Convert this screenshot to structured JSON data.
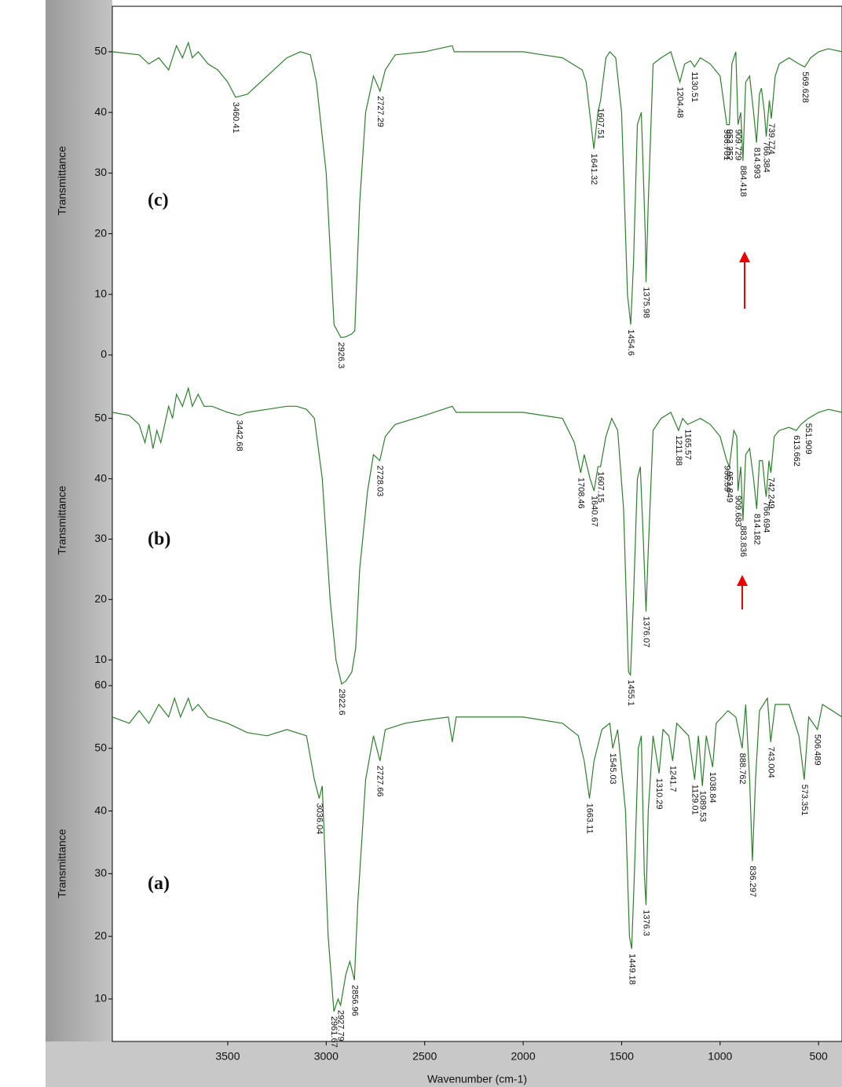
{
  "chart_data": [
    {
      "type": "line",
      "label": "(c)",
      "y_label": "Transmittance",
      "color": "#2f7f2f",
      "xlim": [
        4086,
        381
      ],
      "ylim": [
        0,
        57.5
      ],
      "yticks": [
        0,
        10,
        20,
        30,
        40,
        50
      ],
      "x": [
        4086,
        3950,
        3900,
        3850,
        3800,
        3760,
        3730,
        3700,
        3680,
        3650,
        3600,
        3550,
        3500,
        3460,
        3400,
        3300,
        3200,
        3130,
        3080,
        3050,
        3000,
        2960,
        2926,
        2900,
        2870,
        2855,
        2830,
        2800,
        2760,
        2727,
        2700,
        2650,
        2500,
        2360,
        2350,
        2200,
        2000,
        1900,
        1800,
        1700,
        1680,
        1641,
        1620,
        1607,
        1580,
        1560,
        1530,
        1500,
        1470,
        1454,
        1440,
        1420,
        1400,
        1380,
        1376,
        1365,
        1340,
        1300,
        1250,
        1204,
        1180,
        1150,
        1130,
        1100,
        1050,
        1000,
        966,
        953,
        940,
        920,
        909,
        895,
        884,
        870,
        850,
        830,
        815,
        800,
        790,
        775,
        766,
        750,
        740,
        720,
        700,
        650,
        600,
        570,
        540,
        500,
        450,
        381
      ],
      "values": [
        50,
        49.5,
        48,
        49,
        47,
        51,
        49,
        51.5,
        49,
        50,
        48,
        47,
        45,
        42.5,
        43,
        46,
        49,
        50,
        49.5,
        45,
        30,
        5,
        2.9,
        3,
        3.5,
        4,
        25,
        40,
        46,
        43.5,
        47,
        49.5,
        50,
        51,
        50,
        50,
        50,
        49.5,
        49,
        47,
        45,
        34,
        40,
        42,
        49,
        50,
        49,
        40,
        10,
        5,
        15,
        38,
        40,
        20,
        12,
        25,
        48,
        49,
        50,
        45,
        48,
        48.5,
        47.5,
        49,
        48,
        46,
        38,
        38,
        48,
        50,
        38,
        40,
        32,
        45,
        46,
        40,
        35,
        43,
        44,
        40,
        36,
        42,
        39,
        46,
        48,
        49,
        48,
        47.5,
        49,
        50,
        50.5,
        50
      ],
      "peaks": [
        {
          "x": 3460.41,
          "y": 42.5
        },
        {
          "x": 2926.3,
          "y": 2.9
        },
        {
          "x": 2727.29,
          "y": 43.5
        },
        {
          "x": 1641.32,
          "y": 34
        },
        {
          "x": 1607.51,
          "y": 41.5
        },
        {
          "x": 1454.6,
          "y": 5
        },
        {
          "x": 1375.98,
          "y": 12
        },
        {
          "x": 1204.48,
          "y": 45
        },
        {
          "x": 1130.51,
          "y": 47.5
        },
        {
          "x": 966.701,
          "y": 38
        },
        {
          "x": 953.252,
          "y": 38
        },
        {
          "x": 909.729,
          "y": 38
        },
        {
          "x": 884.418,
          "y": 32
        },
        {
          "x": 814.993,
          "y": 35
        },
        {
          "x": 766.384,
          "y": 36
        },
        {
          "x": 739.774,
          "y": 39
        },
        {
          "x": 569.628,
          "y": 47.5
        }
      ]
    },
    {
      "type": "line",
      "label": "(b)",
      "y_label": "Transmittance",
      "color": "#2f7f2f",
      "xlim": [
        4086,
        381
      ],
      "ylim": [
        5.73,
        60.5
      ],
      "yticks": [
        10,
        20,
        30,
        40,
        50
      ],
      "x": [
        4086,
        4000,
        3950,
        3920,
        3900,
        3880,
        3860,
        3840,
        3800,
        3780,
        3760,
        3730,
        3700,
        3680,
        3650,
        3620,
        3580,
        3500,
        3442,
        3400,
        3300,
        3200,
        3150,
        3100,
        3060,
        3020,
        2980,
        2950,
        2922,
        2900,
        2870,
        2850,
        2830,
        2790,
        2760,
        2728,
        2700,
        2650,
        2500,
        2360,
        2340,
        2200,
        2000,
        1900,
        1800,
        1740,
        1708,
        1690,
        1660,
        1640,
        1620,
        1607,
        1580,
        1550,
        1520,
        1490,
        1465,
        1455,
        1440,
        1420,
        1405,
        1390,
        1376,
        1365,
        1340,
        1300,
        1250,
        1211,
        1190,
        1165,
        1100,
        1050,
        1000,
        966,
        953,
        930,
        915,
        909,
        895,
        884,
        870,
        850,
        830,
        814,
        800,
        785,
        770,
        766,
        752,
        742,
        725,
        700,
        650,
        613,
        590,
        552,
        500,
        450,
        381
      ],
      "values": [
        51,
        50.5,
        49,
        46,
        49,
        45,
        48,
        46,
        52,
        50,
        54,
        52,
        55,
        52,
        54,
        52,
        52,
        51,
        50.5,
        51,
        51.5,
        52,
        52,
        51.5,
        50,
        40,
        20,
        10,
        6,
        6.5,
        8,
        12,
        25,
        38,
        44,
        43,
        47,
        49,
        50.5,
        52,
        51,
        51,
        51,
        50.5,
        50,
        46,
        41,
        44,
        40,
        38,
        42,
        42,
        47,
        50,
        48,
        35,
        8,
        7.5,
        20,
        40,
        42,
        30,
        18,
        28,
        48,
        50,
        51,
        48,
        50,
        49,
        50,
        49,
        47,
        43,
        42,
        48,
        47,
        38,
        42,
        33,
        44,
        45,
        40,
        35,
        43,
        43,
        38,
        37,
        43,
        41,
        47,
        48,
        48.5,
        48,
        49,
        50,
        51,
        51.5,
        51
      ],
      "peaks": [
        {
          "x": 3442.68,
          "y": 50.5
        },
        {
          "x": 2922.6,
          "y": 6
        },
        {
          "x": 2728.03,
          "y": 43
        },
        {
          "x": 1708.46,
          "y": 41
        },
        {
          "x": 1640.67,
          "y": 38
        },
        {
          "x": 1607.15,
          "y": 42
        },
        {
          "x": 1455.1,
          "y": 7.5
        },
        {
          "x": 1376.07,
          "y": 18
        },
        {
          "x": 1211.88,
          "y": 48
        },
        {
          "x": 1165.57,
          "y": 49
        },
        {
          "x": 966.59,
          "y": 43
        },
        {
          "x": 953.849,
          "y": 42
        },
        {
          "x": 909.683,
          "y": 38
        },
        {
          "x": 883.836,
          "y": 33
        },
        {
          "x": 814.182,
          "y": 35
        },
        {
          "x": 766.694,
          "y": 37
        },
        {
          "x": 742.249,
          "y": 41
        },
        {
          "x": 613.662,
          "y": 48
        },
        {
          "x": 551.909,
          "y": 50
        }
      ]
    },
    {
      "type": "line",
      "label": "(a)",
      "y_label": "Transmittance",
      "x_label": "Wavenumber (cm-1)",
      "color": "#2f7f2f",
      "xlim": [
        4086,
        381
      ],
      "xticks": [
        3500,
        3000,
        2500,
        2000,
        1500,
        1000,
        500
      ],
      "ylim": [
        3.23,
        60
      ],
      "yticks": [
        10,
        20,
        30,
        40,
        50,
        60
      ],
      "x": [
        4086,
        4000,
        3950,
        3900,
        3850,
        3800,
        3770,
        3740,
        3700,
        3680,
        3650,
        3600,
        3500,
        3400,
        3300,
        3200,
        3100,
        3060,
        3036,
        3020,
        2990,
        2961,
        2940,
        2927,
        2900,
        2880,
        2857,
        2840,
        2800,
        2760,
        2727,
        2700,
        2600,
        2500,
        2380,
        2360,
        2340,
        2200,
        2000,
        1800,
        1720,
        1690,
        1663,
        1640,
        1600,
        1560,
        1545,
        1520,
        1480,
        1460,
        1449,
        1435,
        1415,
        1400,
        1385,
        1376,
        1365,
        1340,
        1310,
        1290,
        1260,
        1241,
        1220,
        1160,
        1129,
        1110,
        1090,
        1070,
        1038,
        1020,
        960,
        920,
        888,
        870,
        850,
        836,
        820,
        800,
        760,
        743,
        720,
        650,
        600,
        573,
        550,
        506,
        480,
        381
      ],
      "values": [
        55,
        54,
        56,
        54,
        57,
        55,
        58,
        55,
        58,
        56,
        57,
        55,
        54,
        52.5,
        52,
        53,
        52,
        45,
        42,
        44,
        20,
        8,
        10,
        9,
        14,
        16,
        13,
        25,
        45,
        52,
        48,
        53,
        54,
        54.5,
        55,
        51,
        55,
        55,
        55,
        54,
        52,
        48,
        42,
        48,
        53,
        54,
        50,
        53,
        40,
        20,
        18,
        30,
        50,
        52,
        30,
        25,
        40,
        52,
        46,
        53,
        52,
        48,
        54,
        52,
        45,
        52,
        44,
        52,
        47,
        54,
        56,
        55,
        50,
        57,
        45,
        32,
        45,
        56,
        58,
        51,
        57,
        57,
        52,
        45,
        55,
        53,
        57,
        55
      ],
      "peaks": [
        {
          "x": 3036.04,
          "y": 42
        },
        {
          "x": 2961.67,
          "y": 8
        },
        {
          "x": 2927.79,
          "y": 9
        },
        {
          "x": 2856.96,
          "y": 13
        },
        {
          "x": 2727.66,
          "y": 48
        },
        {
          "x": 1663.11,
          "y": 42
        },
        {
          "x": 1545.03,
          "y": 50
        },
        {
          "x": 1449.18,
          "y": 18
        },
        {
          "x": 1376.3,
          "y": 25
        },
        {
          "x": 1310.29,
          "y": 46
        },
        {
          "x": 1241.7,
          "y": 48
        },
        {
          "x": 1129.01,
          "y": 45
        },
        {
          "x": 1089.53,
          "y": 44
        },
        {
          "x": 1038.84,
          "y": 47
        },
        {
          "x": 888.762,
          "y": 50
        },
        {
          "x": 836.297,
          "y": 32
        },
        {
          "x": 743.004,
          "y": 51
        },
        {
          "x": 573.351,
          "y": 45
        },
        {
          "x": 506.489,
          "y": 53
        }
      ]
    }
  ]
}
